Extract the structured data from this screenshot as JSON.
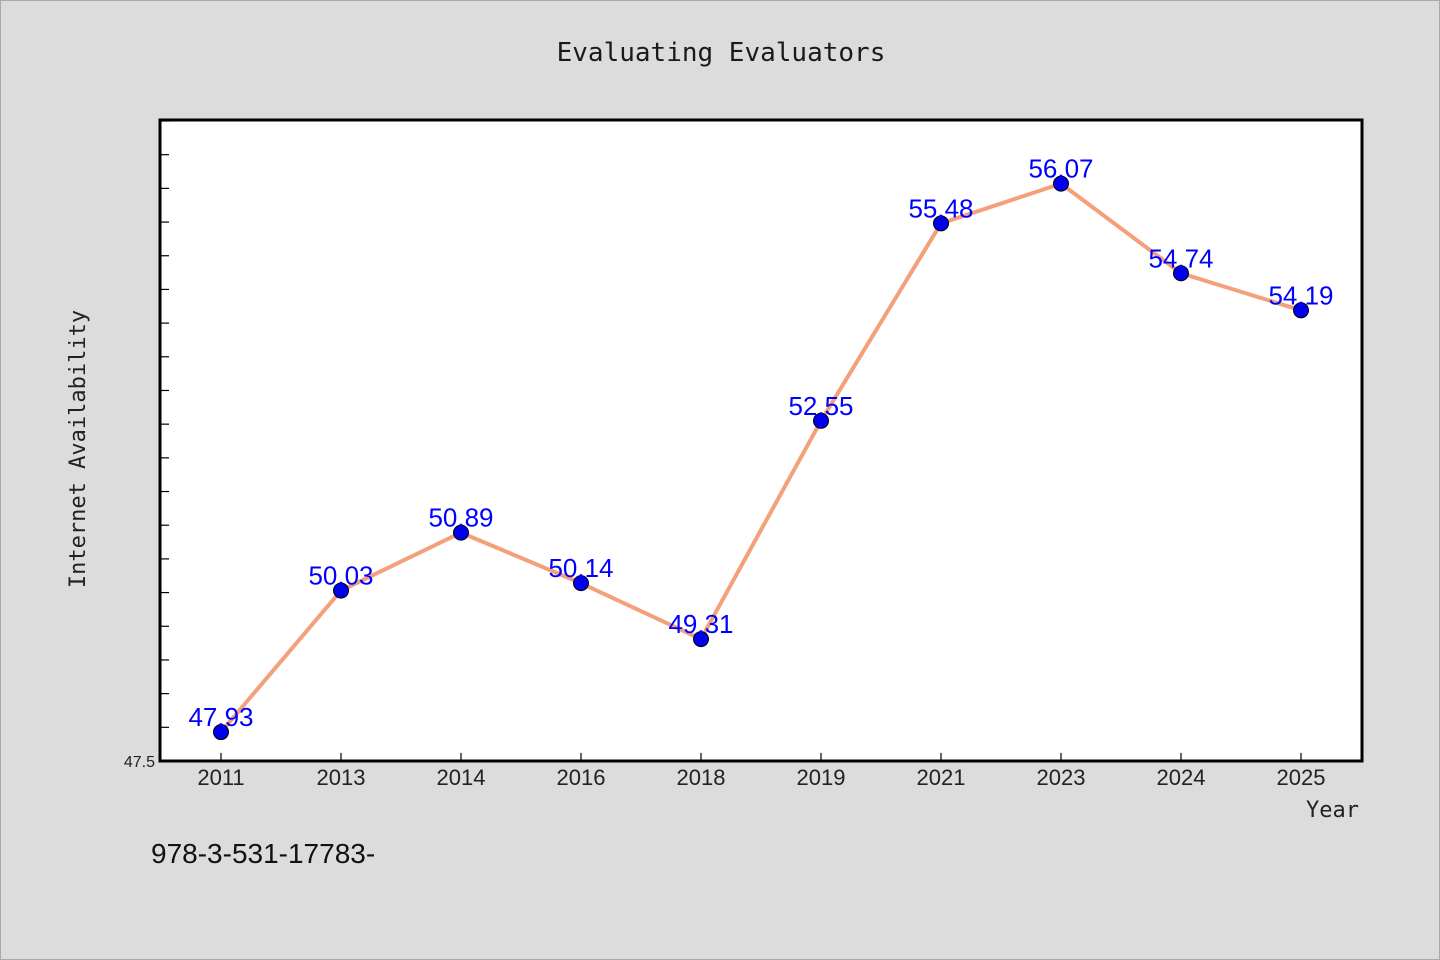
{
  "chart_data": {
    "type": "line",
    "title": "Evaluating Evaluators",
    "xlabel": "Year",
    "ylabel": "Internet Availability",
    "categories": [
      "2011",
      "2013",
      "2014",
      "2016",
      "2018",
      "2019",
      "2021",
      "2023",
      "2024",
      "2025"
    ],
    "series": [
      {
        "values": [
          47.93,
          50.03,
          50.89,
          50.14,
          49.31,
          52.55,
          55.48,
          56.07,
          54.74,
          54.19
        ],
        "color": "#f4a07a",
        "marker_color": "#0000ee",
        "label_color": "#0000ff"
      }
    ],
    "y_tick_labels": [
      "47.5"
    ],
    "ylim": [
      47.5,
      57.0
    ],
    "grid": false,
    "background_color": "#dcdcdc",
    "plot_background_color": "#ffffff"
  },
  "footer": {
    "text": "978-3-531-17783-"
  }
}
